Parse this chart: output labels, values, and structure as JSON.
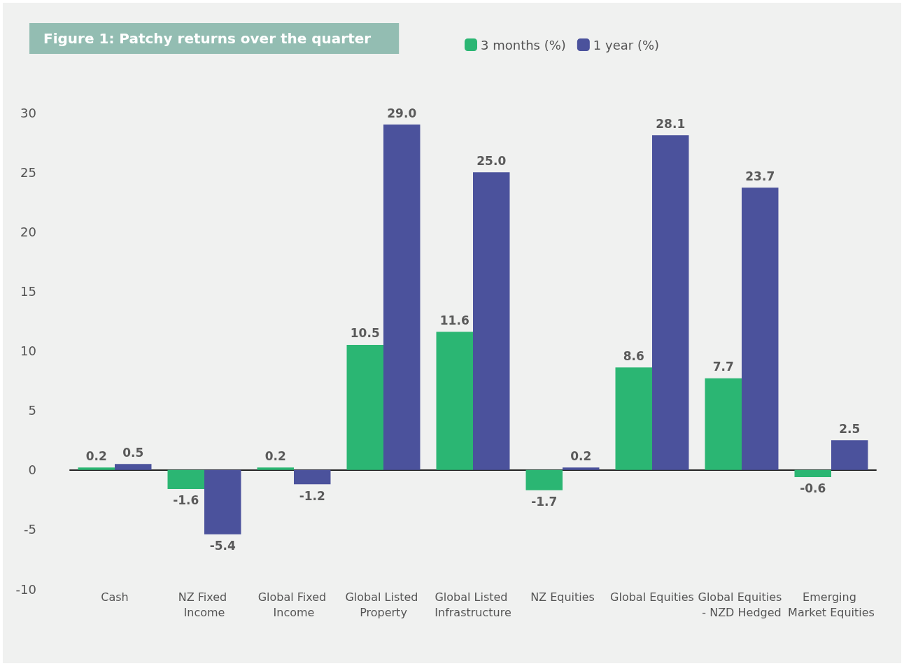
{
  "chart_data": {
    "type": "bar",
    "title": "Figure 1: Patchy returns over the quarter",
    "categories": [
      "Cash",
      "NZ Fixed Income",
      "Global Fixed Income",
      "Global Listed Property",
      "Global Listed Infrastructure",
      "NZ Equities",
      "Global Equities",
      "Global Equities - NZD Hedged",
      "Emerging Market Equities"
    ],
    "series": [
      {
        "name": "3 months (%)",
        "color": "#2bb673",
        "values": [
          0.2,
          -1.6,
          0.2,
          10.5,
          11.6,
          -1.7,
          8.6,
          7.7,
          -0.6
        ],
        "value_labels": [
          "0.2",
          "-1.6",
          "0.2",
          "10.5",
          "11.6",
          "-1.7",
          "8.6",
          "7.7",
          "-0.6"
        ]
      },
      {
        "name": "1 year (%)",
        "color": "#4b529c",
        "values": [
          0.5,
          -5.4,
          -1.2,
          29.0,
          25.0,
          0.2,
          28.1,
          23.7,
          2.5
        ],
        "value_labels": [
          "0.5",
          "-5.4",
          "-1.2",
          "29.0",
          "25.0",
          "0.2",
          "28.1",
          "23.7",
          "2.5"
        ]
      }
    ],
    "ylim": [
      -10,
      30
    ],
    "yticks": [
      -10,
      -5,
      0,
      5,
      10,
      15,
      20,
      25,
      30
    ],
    "legend": "top"
  }
}
